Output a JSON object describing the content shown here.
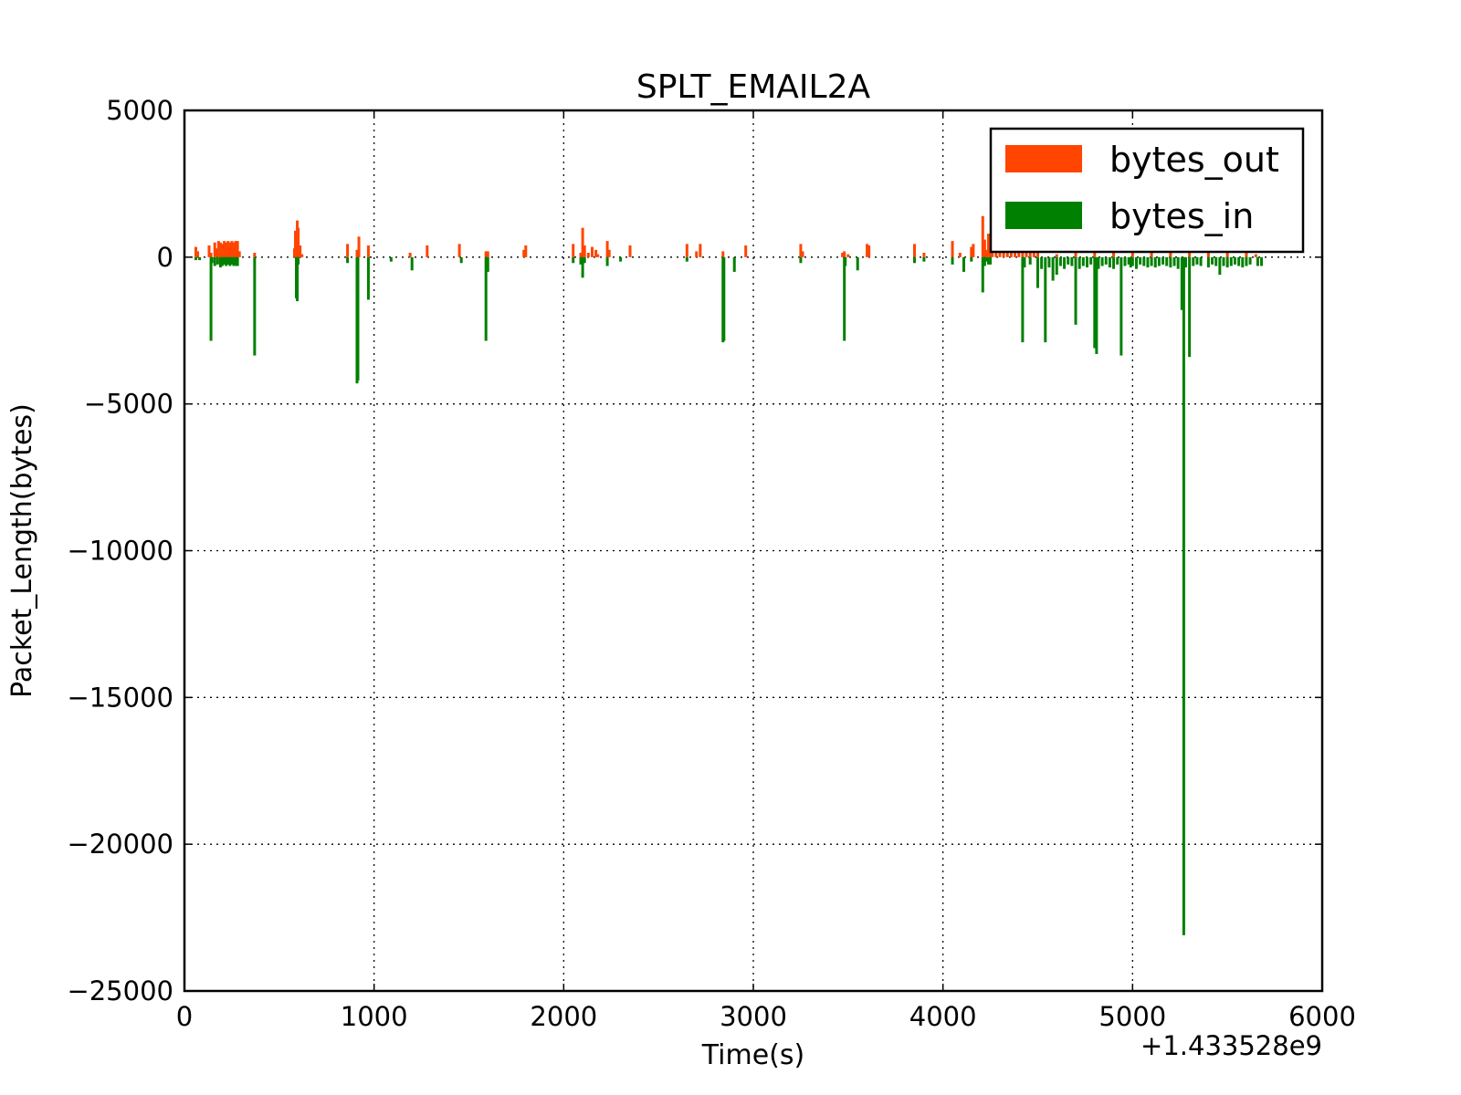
{
  "chart_data": {
    "type": "bar",
    "title": "SPLT_EMAIL2A",
    "xlabel": "Time(s)",
    "ylabel": "Packet_Length(bytes)",
    "x_offset_label": "+1.433528e9",
    "xlim": [
      0,
      6000
    ],
    "ylim": [
      -25000,
      5000
    ],
    "xticks": [
      0,
      1000,
      2000,
      3000,
      4000,
      5000,
      6000
    ],
    "xtick_labels": [
      "0",
      "1000",
      "2000",
      "3000",
      "4000",
      "5000",
      "6000"
    ],
    "yticks": [
      5000,
      0,
      -5000,
      -10000,
      -15000,
      -20000,
      -25000
    ],
    "ytick_labels": [
      "5000",
      "0",
      "−5000",
      "−10000",
      "−15000",
      "−20000",
      "−25000"
    ],
    "grid": true,
    "legend_position": "top-right",
    "series": [
      {
        "name": "bytes_out",
        "color": "#ff4500",
        "x": [
          60,
          70,
          130,
          140,
          160,
          170,
          180,
          185,
          190,
          200,
          205,
          210,
          215,
          220,
          225,
          230,
          235,
          240,
          245,
          250,
          255,
          260,
          265,
          270,
          275,
          280,
          290,
          370,
          580,
          585,
          590,
          595,
          600,
          610,
          620,
          860,
          910,
          920,
          970,
          1190,
          1280,
          1450,
          1590,
          1600,
          1790,
          1800,
          2050,
          2090,
          2100,
          2110,
          2130,
          2150,
          2170,
          2180,
          2230,
          2240,
          2350,
          2650,
          2700,
          2720,
          2840,
          2960,
          3250,
          3260,
          3470,
          3480,
          3500,
          3600,
          3610,
          3850,
          3900,
          4050,
          4090,
          4150,
          4160,
          4210,
          4220,
          4230,
          4240,
          4250,
          4260,
          4280,
          4300,
          4320,
          4340,
          4360,
          4380,
          4400,
          4420,
          4440,
          4460,
          4480,
          4500,
          4600,
          4700,
          4800,
          4900,
          5000,
          5100,
          5200,
          5300,
          5400,
          5500,
          5600,
          5650
        ],
        "values": [
          350,
          200,
          400,
          150,
          500,
          300,
          550,
          200,
          500,
          450,
          150,
          550,
          300,
          500,
          200,
          550,
          450,
          500,
          300,
          550,
          400,
          500,
          300,
          550,
          450,
          550,
          200,
          150,
          300,
          900,
          500,
          1250,
          1000,
          400,
          100,
          450,
          250,
          700,
          400,
          150,
          400,
          450,
          200,
          200,
          250,
          400,
          450,
          150,
          1000,
          400,
          150,
          350,
          250,
          100,
          550,
          250,
          400,
          450,
          200,
          450,
          200,
          400,
          450,
          200,
          150,
          200,
          100,
          450,
          400,
          450,
          150,
          550,
          150,
          350,
          450,
          1400,
          600,
          250,
          800,
          500,
          850,
          200,
          400,
          300,
          350,
          250,
          400,
          300,
          250,
          200,
          350,
          200,
          150,
          100,
          200,
          150,
          200,
          150,
          200,
          150,
          200,
          200,
          150,
          200,
          100
        ]
      },
      {
        "name": "bytes_in",
        "color": "#008000",
        "x": [
          60,
          80,
          140,
          145,
          160,
          175,
          190,
          200,
          210,
          220,
          230,
          240,
          250,
          260,
          270,
          275,
          280,
          370,
          590,
          595,
          600,
          860,
          910,
          915,
          970,
          1090,
          1200,
          1460,
          1590,
          1600,
          2050,
          2090,
          2100,
          2110,
          2230,
          2300,
          2650,
          2840,
          2845,
          2900,
          3250,
          3480,
          3485,
          3550,
          3850,
          3900,
          4050,
          4110,
          4150,
          4210,
          4220,
          4230,
          4240,
          4250,
          4420,
          4430,
          4460,
          4500,
          4520,
          4540,
          4560,
          4580,
          4600,
          4620,
          4640,
          4660,
          4680,
          4700,
          4720,
          4740,
          4760,
          4780,
          4800,
          4810,
          4820,
          4840,
          4860,
          4880,
          4900,
          4920,
          4940,
          4960,
          4980,
          4990,
          5000,
          5020,
          5040,
          5060,
          5080,
          5100,
          5120,
          5140,
          5160,
          5180,
          5200,
          5220,
          5240,
          5260,
          5270,
          5280,
          5300,
          5320,
          5340,
          5360,
          5400,
          5420,
          5440,
          5460,
          5480,
          5500,
          5520,
          5540,
          5560,
          5580,
          5600,
          5620,
          5660,
          5680
        ],
        "values": [
          -100,
          -100,
          -2850,
          -200,
          -300,
          -250,
          -350,
          -300,
          -250,
          -300,
          -250,
          -300,
          -250,
          -300,
          -250,
          -300,
          -300,
          -3350,
          -1400,
          -1500,
          -250,
          -200,
          -4300,
          -4200,
          -1450,
          -150,
          -450,
          -200,
          -2850,
          -500,
          -200,
          -250,
          -700,
          -200,
          -300,
          -150,
          -150,
          -2900,
          -2850,
          -500,
          -200,
          -2850,
          -300,
          -450,
          -200,
          -150,
          -250,
          -500,
          -150,
          -1200,
          -300,
          -150,
          -250,
          -250,
          -2900,
          -350,
          -250,
          -1050,
          -400,
          -2900,
          -350,
          -800,
          -600,
          -300,
          -400,
          -250,
          -300,
          -2300,
          -400,
          -300,
          -350,
          -250,
          -3100,
          -3300,
          -400,
          -300,
          -250,
          -350,
          -400,
          -250,
          -3350,
          -300,
          -250,
          -350,
          -300,
          -400,
          -250,
          -300,
          -350,
          -300,
          -350,
          -300,
          -250,
          -300,
          -350,
          -300,
          -400,
          -1800,
          -23100,
          -350,
          -3400,
          -300,
          -250,
          -300,
          -350,
          -250,
          -300,
          -600,
          -300,
          -350,
          -300,
          -250,
          -300,
          -350,
          -300,
          -250,
          -300,
          -300
        ]
      }
    ]
  }
}
